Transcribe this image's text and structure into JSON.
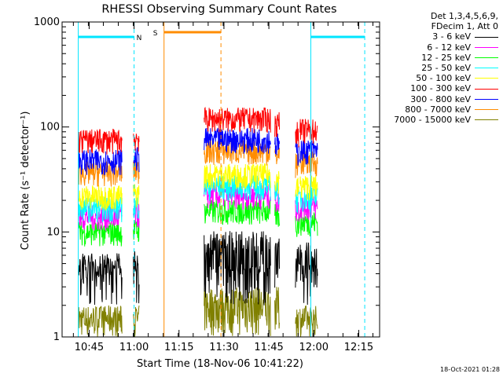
{
  "chart_data": {
    "type": "line",
    "title": "RHESSI Observing Summary Count Rates",
    "xlabel": "Start Time (18-Nov-06 10:41:22)",
    "ylabel": "Count Rate (s⁻¹ detector⁻¹)",
    "yscale": "log",
    "ylim": [
      1,
      1000
    ],
    "xlim_minutes": [
      -5.4,
      100.6
    ],
    "x_ticks": [
      "10:45",
      "11:00",
      "11:15",
      "11:30",
      "11:45",
      "12:00",
      "12:15"
    ],
    "y_ticks": [
      "1",
      "10",
      "100",
      "1000"
    ],
    "legend_header": [
      "Det 1,3,4,5,6,9,",
      "FDecim 1, Att 0"
    ],
    "series": [
      {
        "name": "3 - 6 keV",
        "color": "#000000",
        "segments": [
          [
            0.2,
            54.4,
            8.0
          ]
        ],
        "approx_level": 5
      },
      {
        "name": "6 - 12 keV",
        "color": "#ff00ff",
        "segments": [
          [
            0.2,
            54.4,
            8.0
          ]
        ],
        "approx_level": 14
      },
      {
        "name": "12 - 25 keV",
        "color": "#00ff00",
        "segments": [
          [
            0.2,
            54.4,
            8.0
          ]
        ],
        "approx_level": 10
      },
      {
        "name": "25 - 50 keV",
        "color": "#00ffff",
        "segments": [
          [
            0.2,
            54.4,
            8.0
          ]
        ],
        "approx_level": 17
      },
      {
        "name": "50 - 100 keV",
        "color": "#ffff00",
        "segments": [
          [
            0.2,
            54.4,
            8.0
          ]
        ],
        "approx_level": 22
      },
      {
        "name": "100 - 300 keV",
        "color": "#ff0000",
        "segments": [
          [
            0.2,
            54.4,
            8.0
          ]
        ],
        "approx_level": 75
      },
      {
        "name": "300 - 800 keV",
        "color": "#0000ff",
        "segments": [
          [
            0.2,
            54.4,
            8.0
          ]
        ],
        "approx_level": 48
      },
      {
        "name": "800 - 7000 keV",
        "color": "#ff8c00",
        "segments": [
          [
            0.2,
            54.4,
            8.0
          ]
        ],
        "approx_level": 37
      },
      {
        "name": "7000 - 15000 keV",
        "color": "#808000",
        "segments": [
          [
            0.2,
            54.4,
            8.0
          ]
        ],
        "approx_level": 1.5
      }
    ],
    "annotations": [
      {
        "label": "N",
        "color": "#00e5ff",
        "from": "10:41:22",
        "to": "11:00"
      },
      {
        "label": "",
        "color": "#00e5ff",
        "from": "11:59",
        "to": "12:17"
      },
      {
        "label": "S",
        "color": "#ff8c00",
        "from": "11:10",
        "to": "11:29"
      }
    ],
    "grid": false,
    "legend_position": "top-right outside"
  },
  "timestamp": "18-Oct-2021 01:28"
}
